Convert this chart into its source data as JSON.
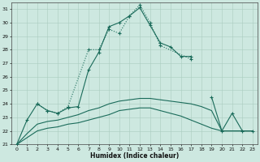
{
  "xlabel": "Humidex (Indice chaleur)",
  "bg_color": "#cde8e0",
  "grid_color": "#aaccbf",
  "line_color": "#1a6b5a",
  "xlim": [
    -0.5,
    23.5
  ],
  "ylim": [
    21,
    31.5
  ],
  "xticks": [
    0,
    1,
    2,
    3,
    4,
    5,
    6,
    7,
    8,
    9,
    10,
    11,
    12,
    13,
    14,
    15,
    16,
    17,
    18,
    19,
    20,
    21,
    22,
    23
  ],
  "yticks": [
    21,
    22,
    23,
    24,
    25,
    26,
    27,
    28,
    29,
    30,
    31
  ],
  "line1_x": [
    0,
    1,
    2,
    3,
    4,
    5,
    6,
    7,
    8,
    9,
    10,
    11,
    12,
    13,
    14,
    15,
    16,
    17
  ],
  "line1_y": [
    21.0,
    22.8,
    24.0,
    23.5,
    23.3,
    23.7,
    23.8,
    26.5,
    27.8,
    29.7,
    30.0,
    30.5,
    31.1,
    29.8,
    28.5,
    28.2,
    27.5,
    27.5
  ],
  "line2_x": [
    2,
    3,
    4,
    5,
    7,
    8,
    9,
    10,
    11,
    12,
    13,
    14,
    17
  ],
  "line2_y": [
    24.0,
    23.5,
    23.3,
    23.8,
    28.0,
    28.0,
    29.5,
    29.2,
    30.5,
    31.3,
    30.0,
    28.3,
    27.3
  ],
  "line3_x": [
    0,
    1,
    2,
    3,
    4,
    5,
    6,
    7,
    8,
    9,
    10,
    11,
    12,
    13,
    14,
    15,
    16,
    17,
    18,
    19,
    20,
    21,
    22,
    23
  ],
  "line3_y": [
    21.0,
    21.8,
    22.5,
    22.7,
    22.8,
    23.0,
    23.2,
    23.5,
    23.7,
    24.0,
    24.2,
    24.3,
    24.4,
    24.4,
    24.3,
    24.2,
    24.1,
    24.0,
    23.8,
    23.5,
    22.0,
    22.0,
    22.0,
    22.0
  ],
  "line4_x": [
    0,
    1,
    2,
    3,
    4,
    5,
    6,
    7,
    8,
    9,
    10,
    11,
    12,
    13,
    14,
    15,
    16,
    17,
    18,
    19,
    20,
    21,
    22,
    23
  ],
  "line4_y": [
    21.0,
    21.5,
    22.0,
    22.2,
    22.3,
    22.5,
    22.6,
    22.8,
    23.0,
    23.2,
    23.5,
    23.6,
    23.7,
    23.7,
    23.5,
    23.3,
    23.1,
    22.8,
    22.5,
    22.2,
    22.0,
    22.0,
    22.0,
    22.0
  ],
  "line5_x": [
    19,
    20,
    21,
    22,
    23
  ],
  "line5_y": [
    24.5,
    22.0,
    23.3,
    22.0,
    22.0
  ]
}
